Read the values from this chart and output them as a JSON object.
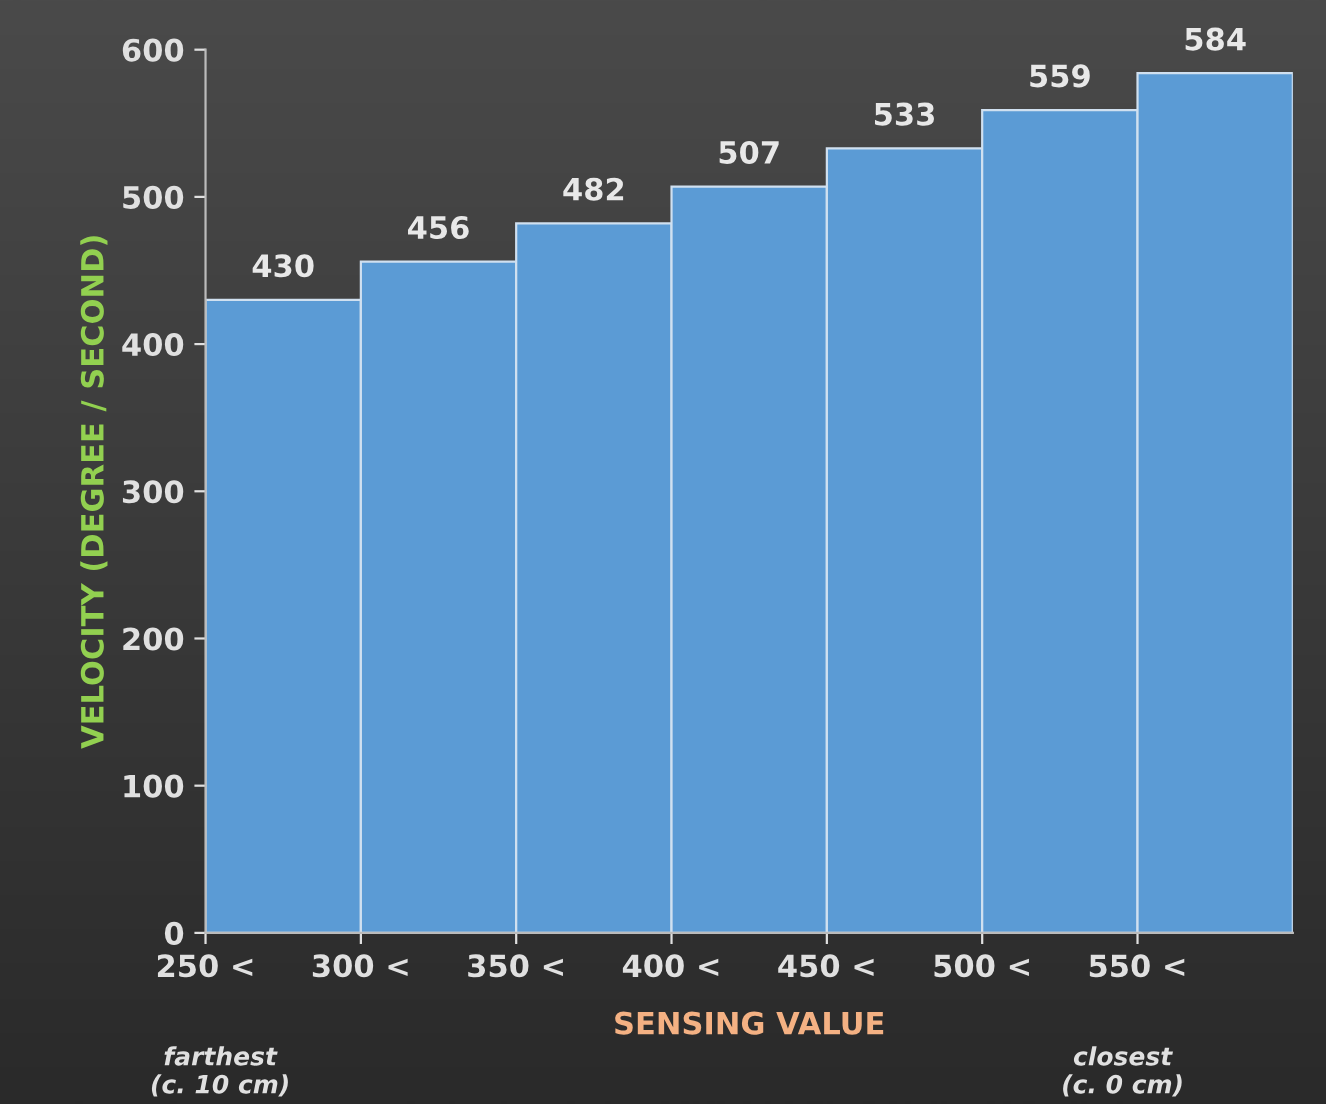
{
  "chart_data": {
    "type": "bar",
    "xlabel": "SENSING VALUE",
    "ylabel": "VELOCITY (DEGREE / SECOND)",
    "categories": [
      "250 <",
      "300 <",
      "350 <",
      "400 <",
      "450 <",
      "500 <",
      "550 <"
    ],
    "values": [
      430,
      456,
      482,
      507,
      533,
      559,
      584
    ],
    "color": "#5b9bd5",
    "data_labels": true,
    "ylim": [
      0,
      600
    ],
    "yticks": [
      0,
      100,
      200,
      300,
      400,
      500,
      600
    ],
    "annotations": [
      "farthest\n(c. 10 cm)",
      "closest\n(c. 0 cm)"
    ]
  }
}
